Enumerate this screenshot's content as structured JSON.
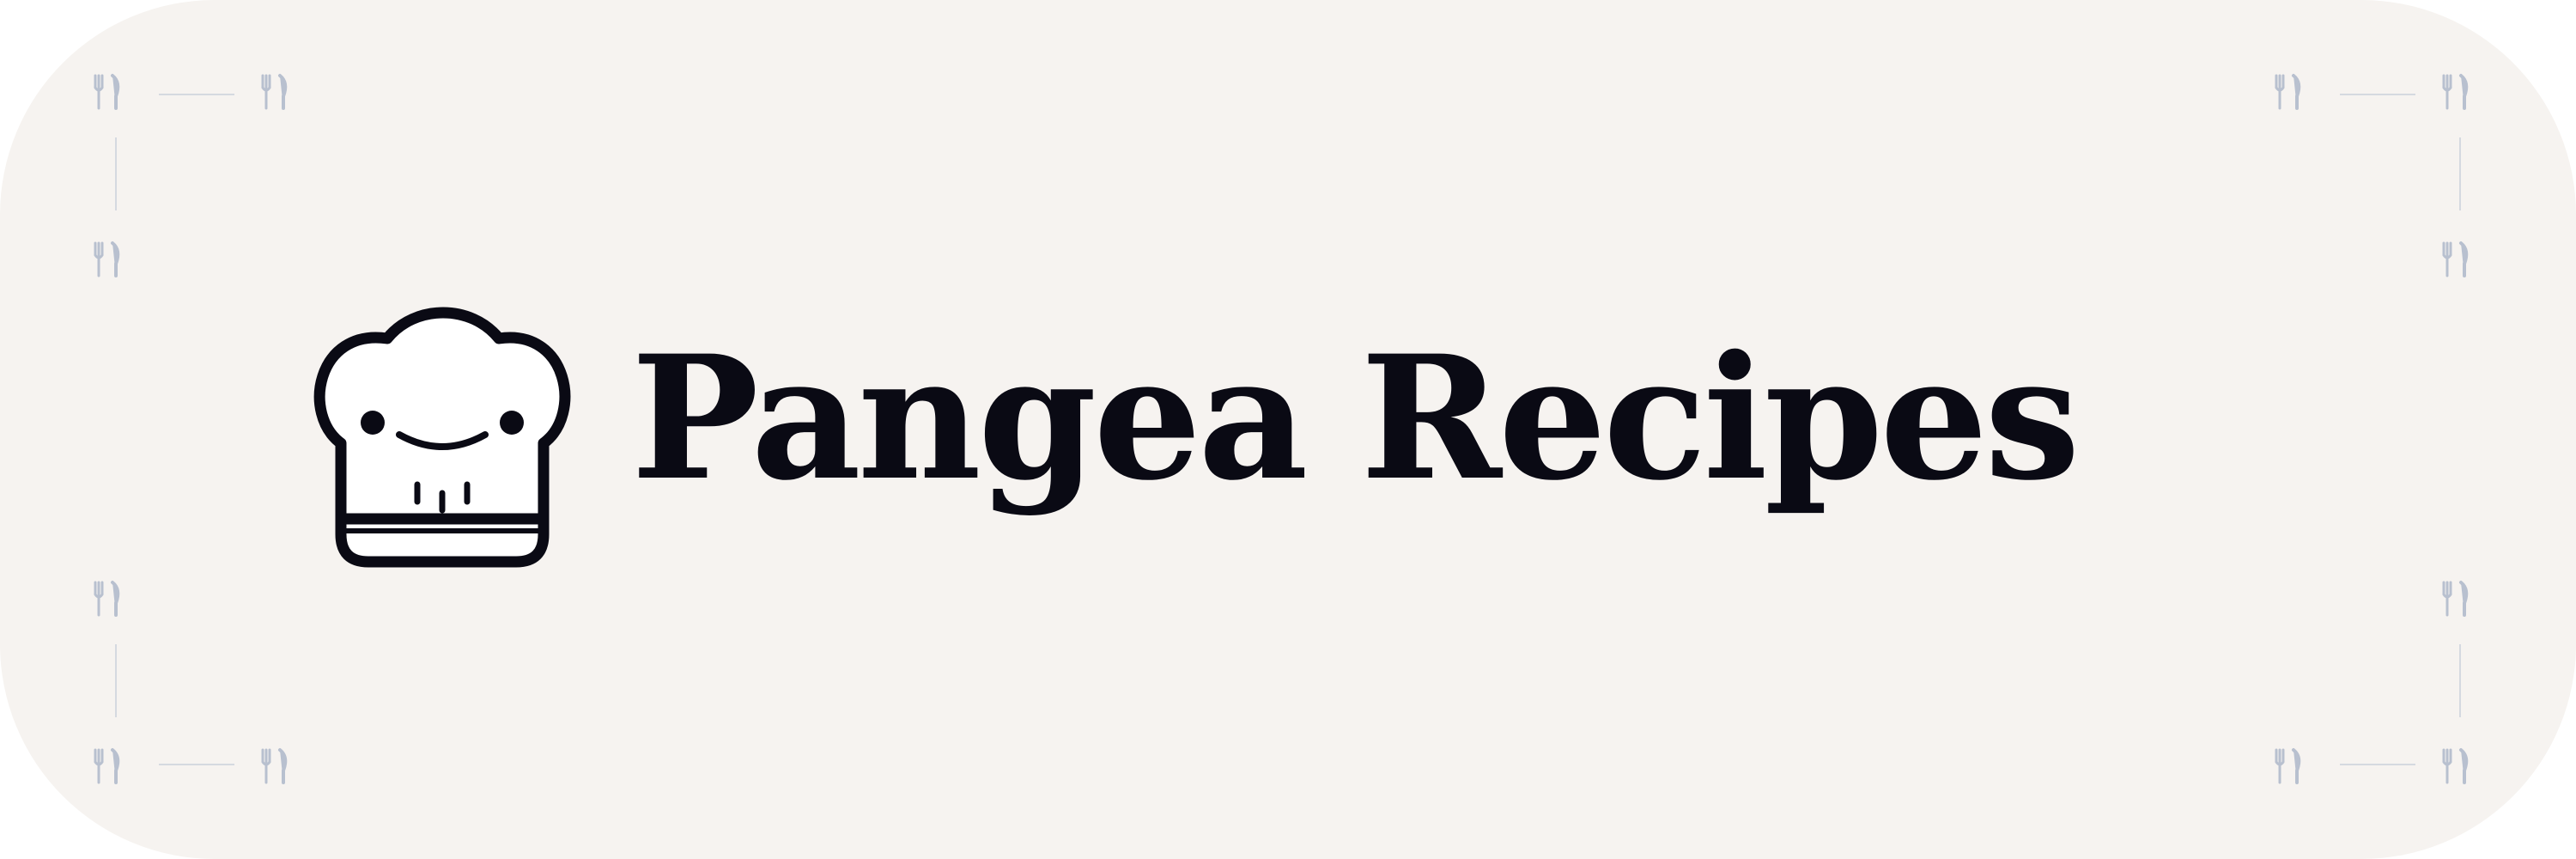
{
  "brand": {
    "name": "Pangea Recipes",
    "logo_icon": "chef-hat-icon",
    "text_color": "#0a0a14"
  },
  "background": {
    "color": "#f6f3f0",
    "pattern_icon": "utensils-icon",
    "pattern_color": "#b8c0cf"
  }
}
